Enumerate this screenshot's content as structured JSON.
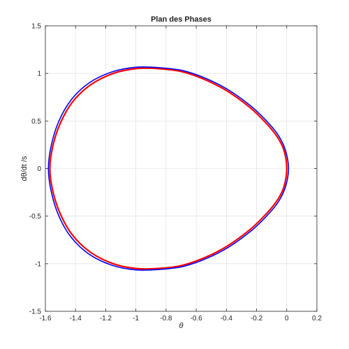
{
  "chart_data": {
    "type": "line",
    "title": "Plan des Phases",
    "xlabel": "θ",
    "ylabel": "dθ/dt /s",
    "xlim": [
      -1.6,
      0.2
    ],
    "ylim": [
      -1.5,
      1.5
    ],
    "xticks": [
      -1.6,
      -1.4,
      -1.2,
      -1,
      -0.8,
      -0.6,
      -0.4,
      -0.2,
      0,
      0.2
    ],
    "xtick_labels": [
      "-1.6",
      "-1.4",
      "-1.2",
      "-1",
      "-0.8",
      "-0.6",
      "-0.4",
      "-0.2",
      "0",
      "0.2"
    ],
    "yticks": [
      -1.5,
      -1,
      -0.5,
      0,
      0.5,
      1,
      1.5
    ],
    "ytick_labels": [
      "-1.5",
      "-1",
      "-0.5",
      "0",
      "0.5",
      "1",
      "1.5"
    ],
    "grid": true,
    "series": [
      {
        "color": "#ff0000",
        "points": [
          [
            0.0,
            0.0
          ],
          [
            -0.02,
            0.2
          ],
          [
            -0.07,
            0.35
          ],
          [
            -0.15,
            0.5
          ],
          [
            -0.25,
            0.65
          ],
          [
            -0.4,
            0.82
          ],
          [
            -0.55,
            0.94
          ],
          [
            -0.7,
            1.02
          ],
          [
            -0.85,
            1.05
          ],
          [
            -1.0,
            1.05
          ],
          [
            -1.15,
            1.0
          ],
          [
            -1.3,
            0.88
          ],
          [
            -1.42,
            0.7
          ],
          [
            -1.5,
            0.48
          ],
          [
            -1.55,
            0.24
          ],
          [
            -1.57,
            0.0
          ],
          [
            -1.55,
            -0.24
          ],
          [
            -1.5,
            -0.48
          ],
          [
            -1.42,
            -0.7
          ],
          [
            -1.3,
            -0.88
          ],
          [
            -1.15,
            -1.0
          ],
          [
            -1.0,
            -1.05
          ],
          [
            -0.85,
            -1.05
          ],
          [
            -0.7,
            -1.02
          ],
          [
            -0.55,
            -0.94
          ],
          [
            -0.4,
            -0.82
          ],
          [
            -0.25,
            -0.65
          ],
          [
            -0.15,
            -0.5
          ],
          [
            -0.07,
            -0.35
          ],
          [
            -0.02,
            -0.2
          ],
          [
            0.0,
            0.0
          ]
        ]
      },
      {
        "color": "#0000ff",
        "points": [
          [
            0.012,
            0.0
          ],
          [
            -0.01,
            0.2
          ],
          [
            -0.06,
            0.36
          ],
          [
            -0.14,
            0.51
          ],
          [
            -0.24,
            0.66
          ],
          [
            -0.39,
            0.83
          ],
          [
            -0.54,
            0.95
          ],
          [
            -0.69,
            1.03
          ],
          [
            -0.84,
            1.06
          ],
          [
            -1.0,
            1.065
          ],
          [
            -1.16,
            1.015
          ],
          [
            -1.31,
            0.9
          ],
          [
            -1.43,
            0.72
          ],
          [
            -1.51,
            0.5
          ],
          [
            -1.56,
            0.25
          ],
          [
            -1.58,
            0.0
          ],
          [
            -1.56,
            -0.25
          ],
          [
            -1.51,
            -0.5
          ],
          [
            -1.43,
            -0.72
          ],
          [
            -1.31,
            -0.9
          ],
          [
            -1.16,
            -1.015
          ],
          [
            -1.0,
            -1.065
          ],
          [
            -0.84,
            -1.06
          ],
          [
            -0.69,
            -1.03
          ],
          [
            -0.54,
            -0.95
          ],
          [
            -0.39,
            -0.83
          ],
          [
            -0.24,
            -0.66
          ],
          [
            -0.14,
            -0.51
          ],
          [
            -0.06,
            -0.36
          ],
          [
            -0.01,
            -0.2
          ],
          [
            0.012,
            0.0
          ]
        ]
      }
    ]
  }
}
